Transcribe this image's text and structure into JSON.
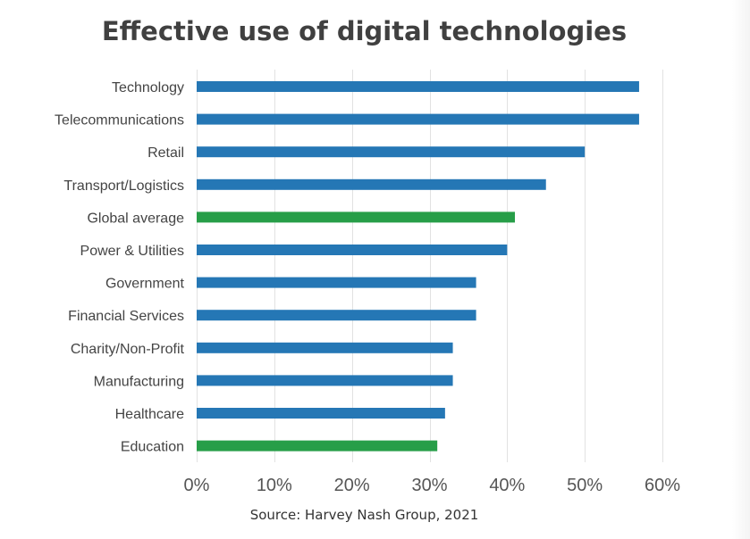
{
  "chart_data": {
    "type": "bar",
    "orientation": "horizontal",
    "title": "Effective use of digital technologies",
    "source": "Source: Harvey Nash Group, 2021",
    "xlabel": "",
    "ylabel": "",
    "xlim": [
      0,
      60
    ],
    "x_ticks": [
      0,
      10,
      20,
      30,
      40,
      50,
      60
    ],
    "x_tick_labels": [
      "0%",
      "10%",
      "20%",
      "30%",
      "40%",
      "50%",
      "60%"
    ],
    "grid": "vertical",
    "categories": [
      "Technology",
      "Telecommunications",
      "Retail",
      "Transport/Logistics",
      "Global average",
      "Power & Utilities",
      "Government",
      "Financial Services",
      "Charity/Non-Profit",
      "Manufacturing",
      "Healthcare",
      "Education"
    ],
    "values": [
      57,
      57,
      50,
      45,
      41,
      40,
      36,
      36,
      33,
      33,
      32,
      31
    ],
    "bar_colors": [
      "#2577b5",
      "#2577b5",
      "#2577b5",
      "#2577b5",
      "#279e48",
      "#2577b5",
      "#2577b5",
      "#2577b5",
      "#2577b5",
      "#2577b5",
      "#2577b5",
      "#279e48"
    ],
    "unit": "%"
  }
}
